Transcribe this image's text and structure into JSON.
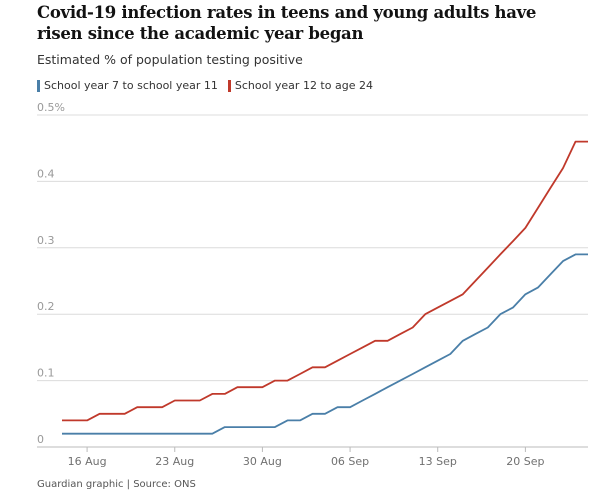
{
  "header": {
    "title": "Covid-19 infection rates in teens and young adults have risen since the academic year began",
    "subtitle": "Estimated % of population testing positive"
  },
  "legend": [
    {
      "label": "School year 7 to school year 11",
      "color": "#4a7fa8"
    },
    {
      "label": "School year 12 to age 24",
      "color": "#c0392b"
    }
  ],
  "footer": {
    "source": "Guardian graphic | Source: ONS"
  },
  "chart_data": {
    "type": "line",
    "x": [
      "2020-08-14",
      "2020-08-15",
      "2020-08-16",
      "2020-08-17",
      "2020-08-18",
      "2020-08-19",
      "2020-08-20",
      "2020-08-21",
      "2020-08-22",
      "2020-08-23",
      "2020-08-24",
      "2020-08-25",
      "2020-08-26",
      "2020-08-27",
      "2020-08-28",
      "2020-08-29",
      "2020-08-30",
      "2020-08-31",
      "2020-09-01",
      "2020-09-02",
      "2020-09-03",
      "2020-09-04",
      "2020-09-05",
      "2020-09-06",
      "2020-09-07",
      "2020-09-08",
      "2020-09-09",
      "2020-09-10",
      "2020-09-11",
      "2020-09-12",
      "2020-09-13",
      "2020-09-14",
      "2020-09-15",
      "2020-09-16",
      "2020-09-17",
      "2020-09-18",
      "2020-09-19",
      "2020-09-20",
      "2020-09-21",
      "2020-09-22",
      "2020-09-23",
      "2020-09-24",
      "2020-09-25"
    ],
    "series": [
      {
        "name": "School year 7 to school year 11",
        "color": "#4a7fa8",
        "values": [
          0.02,
          0.02,
          0.02,
          0.02,
          0.02,
          0.02,
          0.02,
          0.02,
          0.02,
          0.02,
          0.02,
          0.02,
          0.02,
          0.03,
          0.03,
          0.03,
          0.03,
          0.03,
          0.04,
          0.04,
          0.05,
          0.05,
          0.06,
          0.06,
          0.07,
          0.08,
          0.09,
          0.1,
          0.11,
          0.12,
          0.13,
          0.14,
          0.16,
          0.17,
          0.18,
          0.2,
          0.21,
          0.23,
          0.24,
          0.26,
          0.28,
          0.29,
          0.29
        ]
      },
      {
        "name": "School year 12 to age 24",
        "color": "#c0392b",
        "values": [
          0.04,
          0.04,
          0.04,
          0.05,
          0.05,
          0.05,
          0.06,
          0.06,
          0.06,
          0.07,
          0.07,
          0.07,
          0.08,
          0.08,
          0.09,
          0.09,
          0.09,
          0.1,
          0.1,
          0.11,
          0.12,
          0.12,
          0.13,
          0.14,
          0.15,
          0.16,
          0.16,
          0.17,
          0.18,
          0.2,
          0.21,
          0.22,
          0.23,
          0.25,
          0.27,
          0.29,
          0.31,
          0.33,
          0.36,
          0.39,
          0.42,
          0.46,
          0.46
        ]
      }
    ],
    "xticks": [
      {
        "date": "2020-08-16",
        "label": "16 Aug"
      },
      {
        "date": "2020-08-23",
        "label": "23 Aug"
      },
      {
        "date": "2020-08-30",
        "label": "30 Aug"
      },
      {
        "date": "2020-09-06",
        "label": "06 Sep"
      },
      {
        "date": "2020-09-13",
        "label": "13 Sep"
      },
      {
        "date": "2020-09-20",
        "label": "20 Sep"
      }
    ],
    "yticks": [
      {
        "value": 0,
        "label": "0"
      },
      {
        "value": 0.1,
        "label": "0.1"
      },
      {
        "value": 0.2,
        "label": "0.2"
      },
      {
        "value": 0.3,
        "label": "0.3"
      },
      {
        "value": 0.4,
        "label": "0.4"
      },
      {
        "value": 0.5,
        "label": "0.5%"
      }
    ],
    "ylim": [
      0,
      0.5
    ],
    "xlim": [
      "2020-08-12",
      "2020-09-25"
    ],
    "grid": true,
    "legend_position": "top-left"
  }
}
